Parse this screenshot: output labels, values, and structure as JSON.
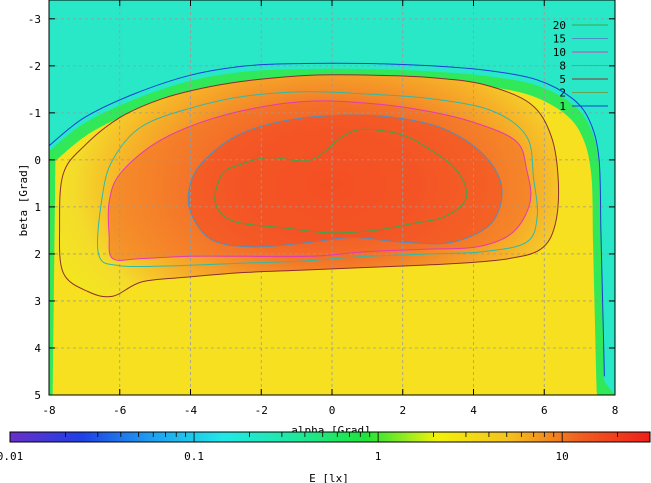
{
  "chart_data": {
    "type": "heatmap",
    "xlabel": "alpha [Grad]",
    "ylabel": "beta [Grad]",
    "xlim": [
      -8,
      8
    ],
    "ylim": [
      -3.4,
      5
    ],
    "y_reversed": true,
    "x_ticks": [
      "-8",
      "-6",
      "-4",
      "-2",
      "0",
      "2",
      "4",
      "6",
      "8"
    ],
    "y_ticks": [
      "-3",
      "-2",
      "-1",
      "0",
      "1",
      "2",
      "3",
      "4",
      "5"
    ],
    "grid": true,
    "legend_position": "top-right",
    "contours": [
      {
        "level": "20",
        "color": "#3aa64a",
        "points": [
          [
            -3.1,
            0.3
          ],
          [
            -2.6,
            0.1
          ],
          [
            -1.8,
            -0.05
          ],
          [
            -0.6,
            0.0
          ],
          [
            0.3,
            -0.5
          ],
          [
            0.9,
            -0.65
          ],
          [
            1.9,
            -0.55
          ],
          [
            2.6,
            -0.3
          ],
          [
            3.5,
            0.2
          ],
          [
            3.8,
            0.8
          ],
          [
            3.2,
            1.2
          ],
          [
            2.3,
            1.35
          ],
          [
            1.2,
            1.5
          ],
          [
            -0.1,
            1.55
          ],
          [
            -1.3,
            1.45
          ],
          [
            -2.8,
            1.3
          ],
          [
            -3.3,
            0.9
          ]
        ]
      },
      {
        "level": "15",
        "color": "#4d8fbf",
        "points": [
          [
            -4.0,
            0.5
          ],
          [
            -3.6,
            0.0
          ],
          [
            -2.6,
            -0.55
          ],
          [
            -1.2,
            -0.85
          ],
          [
            0.3,
            -0.95
          ],
          [
            1.8,
            -0.9
          ],
          [
            3.2,
            -0.65
          ],
          [
            4.3,
            -0.1
          ],
          [
            4.8,
            0.6
          ],
          [
            4.5,
            1.35
          ],
          [
            3.4,
            1.75
          ],
          [
            2.0,
            1.75
          ],
          [
            0.6,
            1.65
          ],
          [
            -0.6,
            1.75
          ],
          [
            -2.2,
            1.85
          ],
          [
            -3.4,
            1.7
          ],
          [
            -4.0,
            1.1
          ]
        ]
      },
      {
        "level": "10",
        "color": "#e23bb0",
        "points": [
          [
            -6.3,
            0.9
          ],
          [
            -6.0,
            0.3
          ],
          [
            -5.0,
            -0.35
          ],
          [
            -3.7,
            -0.8
          ],
          [
            -2.2,
            -1.1
          ],
          [
            -0.6,
            -1.25
          ],
          [
            1.1,
            -1.2
          ],
          [
            2.6,
            -1.05
          ],
          [
            4.0,
            -0.8
          ],
          [
            5.2,
            -0.4
          ],
          [
            5.5,
            0.2
          ],
          [
            5.6,
            0.9
          ],
          [
            5.1,
            1.55
          ],
          [
            4.1,
            1.85
          ],
          [
            2.6,
            1.9
          ],
          [
            1.0,
            1.95
          ],
          [
            -0.6,
            2.05
          ],
          [
            -2.4,
            2.05
          ],
          [
            -4.0,
            2.05
          ],
          [
            -5.4,
            2.1
          ],
          [
            -6.2,
            2.1
          ],
          [
            -6.3,
            1.6
          ]
        ]
      },
      {
        "level": "8",
        "color": "#2fb9a8",
        "points": [
          [
            -6.5,
            0.8
          ],
          [
            -6.2,
            0.0
          ],
          [
            -5.4,
            -0.7
          ],
          [
            -4.0,
            -1.1
          ],
          [
            -2.5,
            -1.35
          ],
          [
            -0.8,
            -1.45
          ],
          [
            1.0,
            -1.4
          ],
          [
            2.8,
            -1.3
          ],
          [
            4.5,
            -1.05
          ],
          [
            5.5,
            -0.5
          ],
          [
            5.7,
            0.4
          ],
          [
            5.8,
            1.2
          ],
          [
            5.5,
            1.75
          ],
          [
            4.3,
            1.95
          ],
          [
            2.8,
            2.0
          ],
          [
            1.0,
            2.05
          ],
          [
            -0.8,
            2.15
          ],
          [
            -2.6,
            2.2
          ],
          [
            -4.4,
            2.25
          ],
          [
            -6.0,
            2.25
          ],
          [
            -6.6,
            2.0
          ]
        ]
      },
      {
        "level": "5",
        "color": "#8b2e2e",
        "points": [
          [
            -7.6,
            0.3
          ],
          [
            -7.0,
            -0.3
          ],
          [
            -6.0,
            -0.9
          ],
          [
            -4.8,
            -1.3
          ],
          [
            -3.5,
            -1.55
          ],
          [
            -2.2,
            -1.7
          ],
          [
            -0.6,
            -1.8
          ],
          [
            1.2,
            -1.8
          ],
          [
            2.8,
            -1.75
          ],
          [
            4.3,
            -1.6
          ],
          [
            5.6,
            -1.2
          ],
          [
            6.2,
            -0.5
          ],
          [
            6.4,
            0.5
          ],
          [
            6.3,
            1.4
          ],
          [
            5.9,
            1.9
          ],
          [
            5.0,
            2.1
          ],
          [
            3.6,
            2.2
          ],
          [
            2.2,
            2.25
          ],
          [
            0.6,
            2.3
          ],
          [
            -1.0,
            2.35
          ],
          [
            -2.6,
            2.4
          ],
          [
            -4.2,
            2.5
          ],
          [
            -5.4,
            2.6
          ],
          [
            -6.2,
            2.9
          ],
          [
            -6.9,
            2.8
          ],
          [
            -7.6,
            2.4
          ],
          [
            -7.7,
            1.4
          ]
        ]
      },
      {
        "level": "1",
        "color": "#1a3fd6",
        "points": [
          [
            -8.0,
            -0.3
          ],
          [
            -7.0,
            -0.9
          ],
          [
            -5.6,
            -1.4
          ],
          [
            -4.0,
            -1.8
          ],
          [
            -2.4,
            -2.0
          ],
          [
            -0.8,
            -2.05
          ],
          [
            1.0,
            -2.05
          ],
          [
            2.8,
            -2.0
          ],
          [
            4.4,
            -1.9
          ],
          [
            5.8,
            -1.7
          ],
          [
            6.8,
            -1.3
          ],
          [
            7.3,
            -0.8
          ],
          [
            7.55,
            0.0
          ],
          [
            7.6,
            1.5
          ],
          [
            7.65,
            3.0
          ],
          [
            7.7,
            4.6
          ]
        ]
      }
    ],
    "legend_entries": [
      {
        "label": "20",
        "color": "#3aa64a"
      },
      {
        "label": "15",
        "color": "#4d8fbf"
      },
      {
        "label": "10",
        "color": "#e23bb0"
      },
      {
        "label": "8",
        "color": "#2fb9a8"
      },
      {
        "label": "5",
        "color": "#8b2e2e"
      },
      {
        "label": "2",
        "color": "#6ba052"
      },
      {
        "label": "1",
        "color": "#1a3fd6"
      }
    ],
    "colorbar": {
      "title": "E [lx]",
      "scale": "log",
      "range": [
        0.01,
        30
      ],
      "tick_labels": [
        "0.01",
        "0.1",
        "1",
        "10"
      ],
      "colors": [
        "#6a2fc8",
        "#1f3fe6",
        "#1fa0f0",
        "#21e8e8",
        "#1fe8a0",
        "#20e33a",
        "#f2f20a",
        "#f5c21e",
        "#f06020",
        "#ef1f1a"
      ]
    },
    "background_colors": {
      "low": "#28e8c8",
      "mid": "#30e858",
      "high": "#f6e020",
      "peak": "#f44a22"
    }
  }
}
